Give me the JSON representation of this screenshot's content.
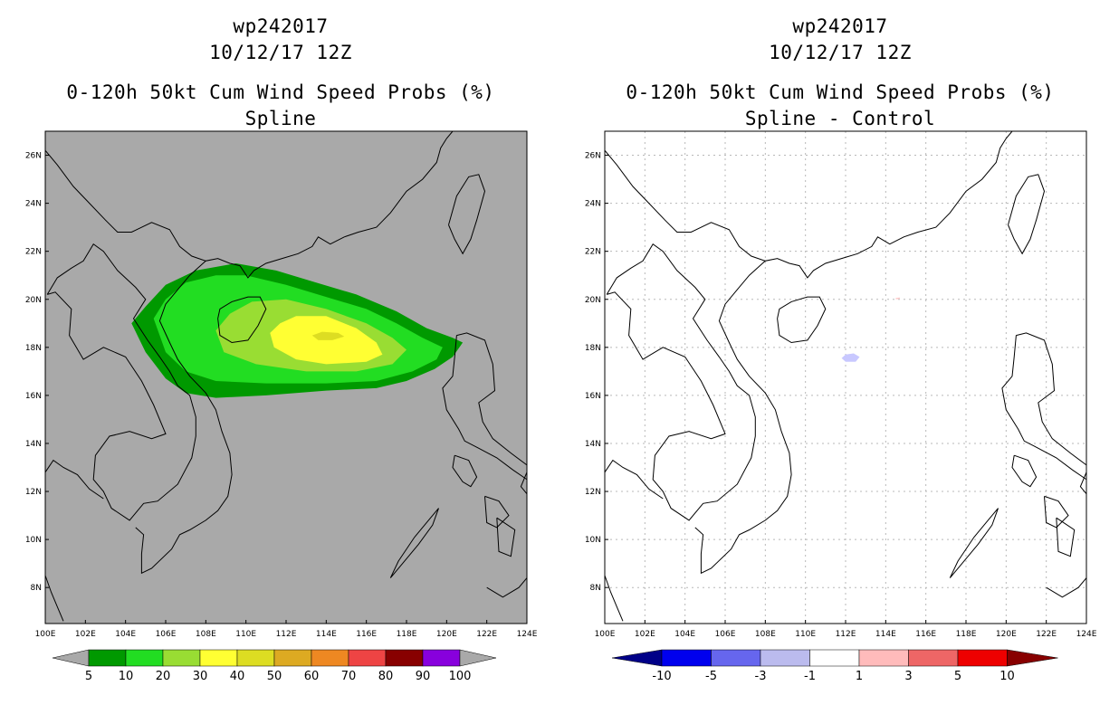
{
  "chart_data": [
    {
      "type": "heatmap",
      "storm_id": "wp242017",
      "date": "10/12/17 12Z",
      "title": "0-120h 50kt Cum Wind Speed Probs (%)",
      "subtitle": "Spline",
      "xlim": [
        100,
        124
      ],
      "ylim": [
        6.5,
        27
      ],
      "xticks": [
        "100E",
        "102E",
        "104E",
        "106E",
        "108E",
        "110E",
        "112E",
        "114E",
        "116E",
        "118E",
        "120E",
        "122E",
        "124E"
      ],
      "yticks": [
        "8N",
        "10N",
        "12N",
        "14N",
        "16N",
        "18N",
        "20N",
        "22N",
        "24N",
        "26N"
      ],
      "background_color": "#a9a9a9",
      "colorbar": {
        "labels": [
          "5",
          "10",
          "20",
          "30",
          "40",
          "50",
          "60",
          "70",
          "80",
          "90",
          "100"
        ],
        "colors": [
          "#009900",
          "#22dd22",
          "#99dd33",
          "#ffff33",
          "#dddd22",
          "#ddaa22",
          "#ee8822",
          "#ee4444",
          "#880000",
          "#8800dd"
        ],
        "end_color": "#a9a9a9"
      },
      "regions": [
        {
          "level": "5-10",
          "color": "#009900",
          "points": [
            [
              104.3,
              19.0
            ],
            [
              105.0,
              19.7
            ],
            [
              106.0,
              20.6
            ],
            [
              107.5,
              21.2
            ],
            [
              109.5,
              21.5
            ],
            [
              111.5,
              21.2
            ],
            [
              113.5,
              20.7
            ],
            [
              115.5,
              20.2
            ],
            [
              117.5,
              19.5
            ],
            [
              119.0,
              18.8
            ],
            [
              120.3,
              18.4
            ],
            [
              120.8,
              18.2
            ],
            [
              120.3,
              17.6
            ],
            [
              119.4,
              17.1
            ],
            [
              118.0,
              16.6
            ],
            [
              116.5,
              16.3
            ],
            [
              114.0,
              16.2
            ],
            [
              111.0,
              16.0
            ],
            [
              108.5,
              15.9
            ],
            [
              107.0,
              16.1
            ],
            [
              106.0,
              16.7
            ],
            [
              105.0,
              17.8
            ]
          ]
        },
        {
          "level": "10-20",
          "color": "#22dd22",
          "points": [
            [
              105.4,
              19.2
            ],
            [
              106.0,
              20.0
            ],
            [
              107.0,
              20.7
            ],
            [
              108.5,
              21.0
            ],
            [
              110.0,
              21.0
            ],
            [
              112.0,
              20.6
            ],
            [
              114.0,
              20.1
            ],
            [
              116.0,
              19.6
            ],
            [
              117.5,
              19.0
            ],
            [
              118.8,
              18.4
            ],
            [
              119.8,
              18.0
            ],
            [
              119.5,
              17.5
            ],
            [
              118.3,
              17.0
            ],
            [
              116.5,
              16.6
            ],
            [
              114.0,
              16.5
            ],
            [
              111.0,
              16.5
            ],
            [
              108.5,
              16.6
            ],
            [
              107.0,
              17.0
            ],
            [
              106.0,
              17.8
            ]
          ]
        },
        {
          "level": "20-30",
          "color": "#99dd33",
          "points": [
            [
              108.5,
              18.7
            ],
            [
              109.2,
              19.4
            ],
            [
              110.3,
              19.9
            ],
            [
              112.0,
              20.0
            ],
            [
              114.0,
              19.6
            ],
            [
              116.0,
              19.0
            ],
            [
              117.3,
              18.4
            ],
            [
              118.0,
              17.9
            ],
            [
              117.3,
              17.3
            ],
            [
              115.5,
              17.0
            ],
            [
              113.0,
              17.0
            ],
            [
              110.5,
              17.3
            ],
            [
              108.9,
              17.8
            ]
          ]
        },
        {
          "level": "30-40",
          "color": "#ffff33",
          "points": [
            [
              111.2,
              18.6
            ],
            [
              111.7,
              19.0
            ],
            [
              112.5,
              19.3
            ],
            [
              114.0,
              19.3
            ],
            [
              115.5,
              18.8
            ],
            [
              116.5,
              18.2
            ],
            [
              116.8,
              17.7
            ],
            [
              116.0,
              17.4
            ],
            [
              114.0,
              17.3
            ],
            [
              112.5,
              17.5
            ],
            [
              111.4,
              18.0
            ]
          ]
        },
        {
          "level": "40-50",
          "color": "#dddd22",
          "points": [
            [
              113.3,
              18.5
            ],
            [
              113.8,
              18.65
            ],
            [
              114.6,
              18.6
            ],
            [
              114.9,
              18.45
            ],
            [
              114.3,
              18.3
            ],
            [
              113.6,
              18.3
            ]
          ]
        }
      ]
    },
    {
      "type": "heatmap",
      "storm_id": "wp242017",
      "date": "10/12/17 12Z",
      "title": "0-120h 50kt Cum Wind Speed Probs (%)",
      "subtitle": "Spline - Control",
      "xlim": [
        100,
        124
      ],
      "ylim": [
        6.5,
        27
      ],
      "xticks": [
        "100E",
        "102E",
        "104E",
        "106E",
        "108E",
        "110E",
        "112E",
        "114E",
        "116E",
        "118E",
        "120E",
        "122E",
        "124E"
      ],
      "yticks": [
        "8N",
        "10N",
        "12N",
        "14N",
        "16N",
        "18N",
        "20N",
        "22N",
        "24N",
        "26N"
      ],
      "background_color": "#ffffff",
      "grid": true,
      "colorbar": {
        "labels": [
          "-10",
          "-5",
          "-3",
          "-1",
          "1",
          "3",
          "5",
          "10"
        ],
        "colors": [
          "#0000ee",
          "#6666ee",
          "#bbbbee",
          "#ffffff",
          "#ffbbbb",
          "#ee6666",
          "#ee0000"
        ],
        "end_colors": [
          "#000088",
          "#880000"
        ]
      },
      "regions": [
        {
          "level": "-3 to -1",
          "color": "#c8c8ff",
          "points": [
            [
              111.8,
              17.55
            ],
            [
              112.0,
              17.7
            ],
            [
              112.4,
              17.75
            ],
            [
              112.7,
              17.6
            ],
            [
              112.5,
              17.4
            ],
            [
              112.0,
              17.4
            ]
          ]
        },
        {
          "level": "1 to 3",
          "color": "#ffcccc",
          "points": [
            [
              114.5,
              20.06
            ],
            [
              114.7,
              20.08
            ],
            [
              114.7,
              20.02
            ],
            [
              114.5,
              20.0
            ]
          ]
        }
      ]
    }
  ]
}
